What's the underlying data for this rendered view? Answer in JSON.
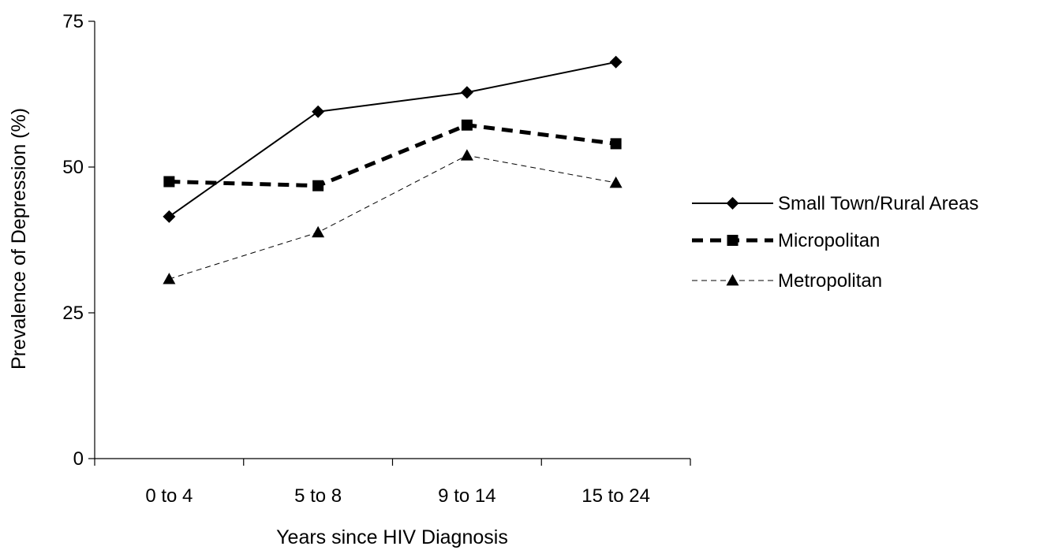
{
  "chart_data": {
    "type": "line",
    "title": "",
    "xlabel": "Years since HIV Diagnosis",
    "ylabel": "Prevalence of Depression (%)",
    "categories": [
      "0 to 4",
      "5 to 8",
      "9 to 14",
      "15 to 24"
    ],
    "ylim": [
      0,
      75
    ],
    "yticks": [
      0,
      25,
      50,
      75
    ],
    "ytick_labels": [
      "0",
      "25",
      "50",
      "75"
    ],
    "grid": false,
    "legend_position": "right",
    "series": [
      {
        "name": "Small Town/Rural Areas",
        "values": [
          41.5,
          59.5,
          62.8,
          68.0
        ],
        "marker": "diamond",
        "line_style": "solid",
        "color": "#000000"
      },
      {
        "name": "Micropolitan",
        "values": [
          47.5,
          46.8,
          57.2,
          54.0
        ],
        "marker": "square",
        "line_style": "bold-dashed",
        "color": "#000000"
      },
      {
        "name": "Metropolitan",
        "values": [
          30.8,
          38.8,
          52.0,
          47.3
        ],
        "marker": "triangle",
        "line_style": "thin-dashed",
        "color": "#000000"
      }
    ]
  }
}
